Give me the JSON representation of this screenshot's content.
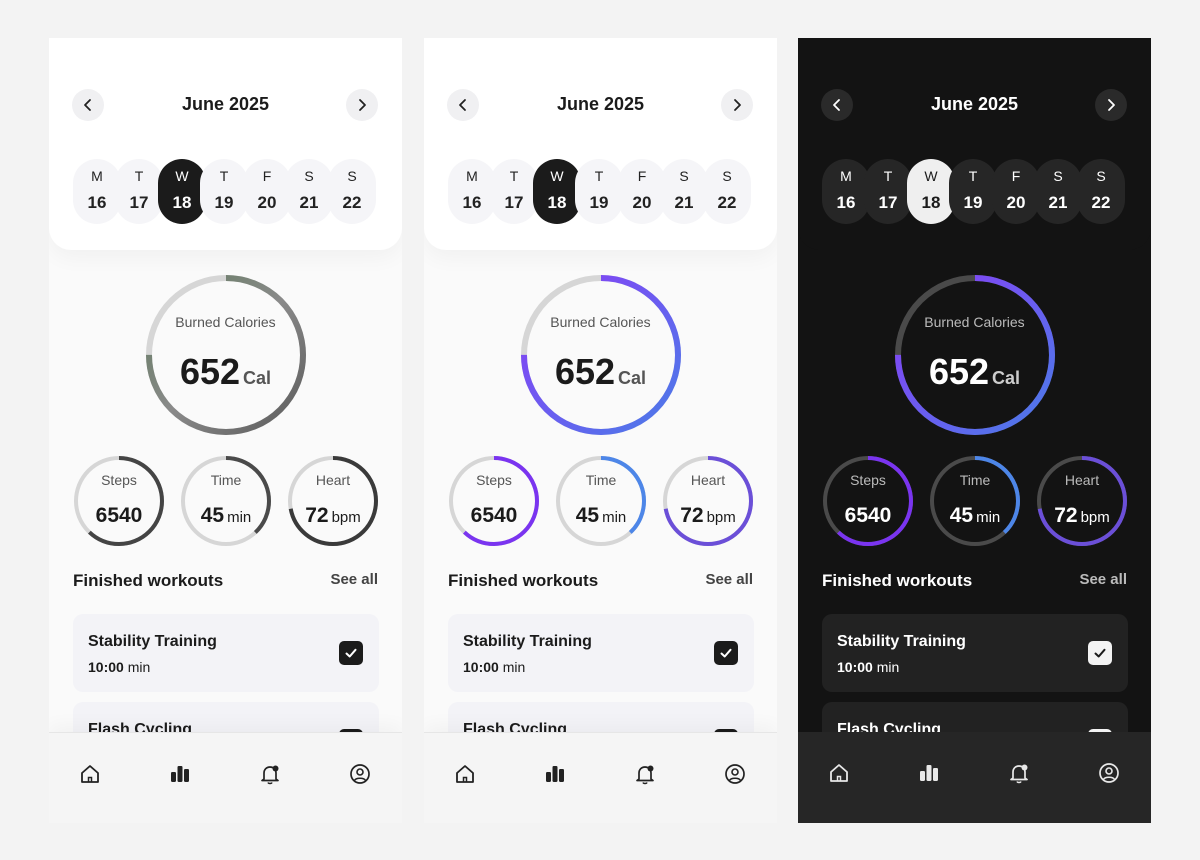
{
  "screens": [
    {
      "theme": "light",
      "month_title": "June 2025",
      "colors": {
        "big_ring": [
          "#5f7a5c",
          "#8a8a8a",
          "#5a5a5a"
        ],
        "track": "#d6d6d6",
        "stats": [
          "#444444",
          "#4a4a4a",
          "#3a3a3a"
        ]
      },
      "days": [
        {
          "letter": "M",
          "num": "16"
        },
        {
          "letter": "T",
          "num": "17"
        },
        {
          "letter": "W",
          "num": "18"
        },
        {
          "letter": "T",
          "num": "19"
        },
        {
          "letter": "F",
          "num": "20"
        },
        {
          "letter": "S",
          "num": "21"
        },
        {
          "letter": "S",
          "num": "22"
        }
      ],
      "selected_day": "18",
      "calories": {
        "label": "Burned Calories",
        "value": "652",
        "unit": "Cal"
      },
      "stats": [
        {
          "label": "Steps",
          "value": "6540",
          "unit": ""
        },
        {
          "label": "Time",
          "value": "45",
          "unit": "min"
        },
        {
          "label": "Heart",
          "value": "72",
          "unit": "bpm"
        }
      ],
      "section_title": "Finished workouts",
      "see_all": "See all",
      "workouts": [
        {
          "title": "Stability Training",
          "time": "10:00",
          "unit": "min"
        },
        {
          "title": "Flash Cycling",
          "time": "",
          "unit": ""
        }
      ],
      "nav": [
        "home-icon",
        "stats-icon",
        "bell-icon",
        "profile-icon"
      ]
    },
    {
      "theme": "light",
      "month_title": "June 2025",
      "colors": {
        "big_ring": [
          "#8a3cf5",
          "#6b5cf0",
          "#4a7ce8"
        ],
        "track": "#d6d6d6",
        "stats": [
          "#7a34f0",
          "#4d86e8",
          "#6b4fd8"
        ]
      },
      "days": [
        {
          "letter": "M",
          "num": "16"
        },
        {
          "letter": "T",
          "num": "17"
        },
        {
          "letter": "W",
          "num": "18"
        },
        {
          "letter": "T",
          "num": "19"
        },
        {
          "letter": "F",
          "num": "20"
        },
        {
          "letter": "S",
          "num": "21"
        },
        {
          "letter": "S",
          "num": "22"
        }
      ],
      "selected_day": "18",
      "calories": {
        "label": "Burned Calories",
        "value": "652",
        "unit": "Cal"
      },
      "stats": [
        {
          "label": "Steps",
          "value": "6540",
          "unit": ""
        },
        {
          "label": "Time",
          "value": "45",
          "unit": "min"
        },
        {
          "label": "Heart",
          "value": "72",
          "unit": "bpm"
        }
      ],
      "section_title": "Finished workouts",
      "see_all": "See all",
      "workouts": [
        {
          "title": "Stability Training",
          "time": "10:00",
          "unit": "min"
        },
        {
          "title": "Flash Cycling",
          "time": "",
          "unit": ""
        }
      ],
      "nav": [
        "home-icon",
        "stats-icon",
        "bell-icon",
        "profile-icon"
      ]
    },
    {
      "theme": "dark",
      "month_title": "June 2025",
      "colors": {
        "big_ring": [
          "#8a3cf5",
          "#6b5cf0",
          "#4a7ce8"
        ],
        "track": "#4a4a4a",
        "stats": [
          "#7a34f0",
          "#4d86e8",
          "#6b4fd8"
        ]
      },
      "days": [
        {
          "letter": "M",
          "num": "16"
        },
        {
          "letter": "T",
          "num": "17"
        },
        {
          "letter": "W",
          "num": "18"
        },
        {
          "letter": "T",
          "num": "19"
        },
        {
          "letter": "F",
          "num": "20"
        },
        {
          "letter": "S",
          "num": "21"
        },
        {
          "letter": "S",
          "num": "22"
        }
      ],
      "selected_day": "18",
      "calories": {
        "label": "Burned Calories",
        "value": "652",
        "unit": "Cal"
      },
      "stats": [
        {
          "label": "Steps",
          "value": "6540",
          "unit": ""
        },
        {
          "label": "Time",
          "value": "45",
          "unit": "min"
        },
        {
          "label": "Heart",
          "value": "72",
          "unit": "bpm"
        }
      ],
      "section_title": "Finished workouts",
      "see_all": "See all",
      "workouts": [
        {
          "title": "Stability Training",
          "time": "10:00",
          "unit": "min"
        },
        {
          "title": "Flash Cycling",
          "time": "",
          "unit": ""
        }
      ],
      "nav": [
        "home-icon",
        "stats-icon",
        "bell-icon",
        "profile-icon"
      ]
    }
  ]
}
